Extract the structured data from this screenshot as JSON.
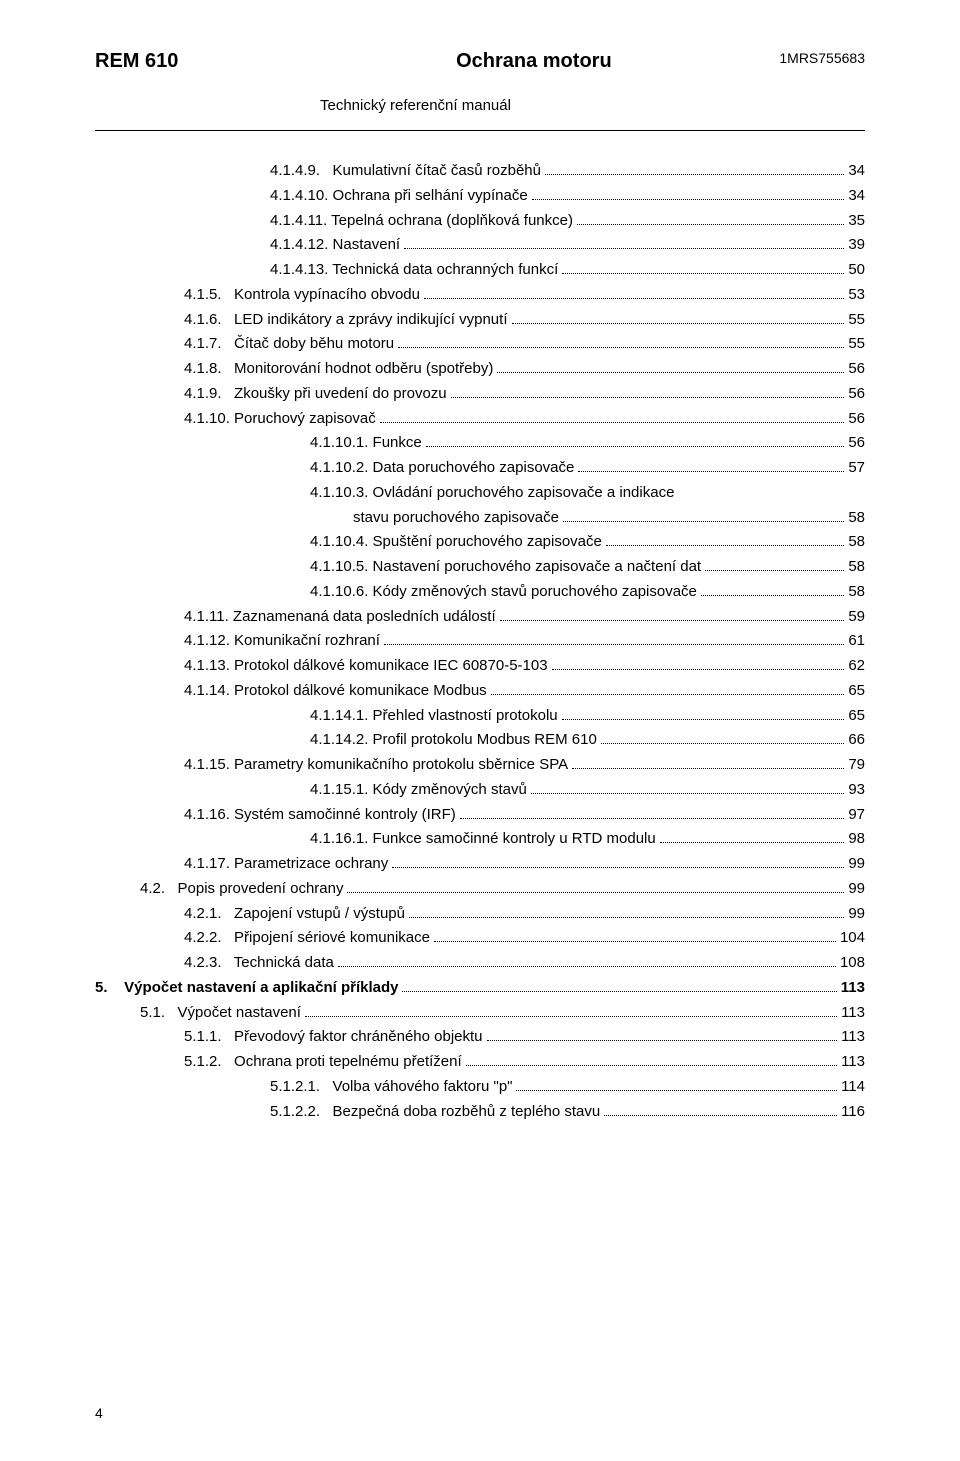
{
  "header": {
    "left": "REM 610",
    "center": "Ochrana motoru",
    "right": "1MRS755683",
    "subtitle": "Technický referenční manuál"
  },
  "footer": {
    "pagenum": "4"
  },
  "toc": [
    {
      "indent": "lv3",
      "label": "4.1.4.9.   Kumulativní čítač časů rozběhů",
      "page": "34"
    },
    {
      "indent": "lv3",
      "label": "4.1.4.10. Ochrana při selhání vypínače",
      "page": "34"
    },
    {
      "indent": "lv3",
      "label": "4.1.4.11. Tepelná ochrana (doplňková funkce)",
      "page": "35"
    },
    {
      "indent": "lv3",
      "label": "4.1.4.12. Nastavení",
      "page": "39"
    },
    {
      "indent": "lv3",
      "label": "4.1.4.13. Technická data ochranných funkcí",
      "page": "50"
    },
    {
      "indent": "lv2",
      "label": "4.1.5.   Kontrola vypínacího obvodu",
      "page": "53"
    },
    {
      "indent": "lv2",
      "label": "4.1.6.   LED indikátory a zprávy indikující vypnutí",
      "page": "55"
    },
    {
      "indent": "lv2",
      "label": "4.1.7.   Čítač doby běhu motoru",
      "page": "55"
    },
    {
      "indent": "lv2",
      "label": "4.1.8.   Monitorování hodnot odběru (spotřeby)",
      "page": "56"
    },
    {
      "indent": "lv2",
      "label": "4.1.9.   Zkoušky při uvedení do provozu",
      "page": "56"
    },
    {
      "indent": "lv2",
      "label": "4.1.10. Poruchový zapisovač",
      "page": "56"
    },
    {
      "indent": "lv4",
      "label": "4.1.10.1. Funkce",
      "page": "56"
    },
    {
      "indent": "lv4",
      "label": "4.1.10.2. Data poruchového zapisovače",
      "page": "57"
    },
    {
      "indent": "lv4",
      "label": "4.1.10.3. Ovládání poruchového zapisovače a indikace",
      "nopagerow": true
    },
    {
      "indent": "cont4",
      "label": "stavu poruchového zapisovače",
      "page": "58",
      "cont": true
    },
    {
      "indent": "lv4",
      "label": "4.1.10.4. Spuštění poruchového zapisovače",
      "page": "58"
    },
    {
      "indent": "lv4",
      "label": "4.1.10.5. Nastavení poruchového zapisovače a načtení dat",
      "page": "58"
    },
    {
      "indent": "lv4",
      "label": "4.1.10.6. Kódy změnových stavů poruchového zapisovače",
      "page": "58"
    },
    {
      "indent": "lv2",
      "label": "4.1.11. Zaznamenaná data posledních událostí",
      "page": "59"
    },
    {
      "indent": "lv2",
      "label": "4.1.12. Komunikační rozhraní",
      "page": "61"
    },
    {
      "indent": "lv2",
      "label": "4.1.13. Protokol dálkové komunikace IEC 60870-5-103",
      "page": "62"
    },
    {
      "indent": "lv2",
      "label": "4.1.14. Protokol dálkové komunikace Modbus",
      "page": "65"
    },
    {
      "indent": "lv4",
      "label": "4.1.14.1. Přehled vlastností protokolu",
      "page": "65"
    },
    {
      "indent": "lv4",
      "label": "4.1.14.2. Profil protokolu Modbus REM 610",
      "page": "66"
    },
    {
      "indent": "lv2",
      "label": "4.1.15. Parametry komunikačního protokolu sběrnice SPA",
      "page": "79"
    },
    {
      "indent": "lv4",
      "label": "4.1.15.1. Kódy změnových stavů",
      "page": "93"
    },
    {
      "indent": "lv2",
      "label": "4.1.16. Systém samočinné kontroly (IRF)",
      "page": "97"
    },
    {
      "indent": "lv4",
      "label": "4.1.16.1. Funkce samočinné kontroly u RTD modulu",
      "page": "98"
    },
    {
      "indent": "lv2",
      "label": "4.1.17. Parametrizace ochrany",
      "page": "99"
    },
    {
      "indent": "lv1",
      "label": "4.2.   Popis provedení ochrany",
      "page": "99"
    },
    {
      "indent": "lv2",
      "label": "4.2.1.   Zapojení vstupů / výstupů",
      "page": "99"
    },
    {
      "indent": "lv2",
      "label": "4.2.2.   Připojení sériové komunikace",
      "page": "104"
    },
    {
      "indent": "lv2",
      "label": "4.2.3.   Technická data",
      "page": "108"
    },
    {
      "indent": "lv0",
      "label": "5.    Výpočet nastavení a aplikační příklady",
      "page": "113",
      "bold": true
    },
    {
      "indent": "lv1",
      "label": "5.1.   Výpočet nastavení",
      "page": "113"
    },
    {
      "indent": "lv2",
      "label": "5.1.1.   Převodový faktor chráněného objektu",
      "page": "113"
    },
    {
      "indent": "lv2",
      "label": "5.1.2.   Ochrana proti tepelnému přetížení",
      "page": "113"
    },
    {
      "indent": "lv3",
      "label": "5.1.2.1.   Volba váhového faktoru \"p\"",
      "page": "114"
    },
    {
      "indent": "lv3",
      "label": "5.1.2.2.   Bezpečná doba rozběhů z teplého stavu",
      "page": "116"
    }
  ]
}
